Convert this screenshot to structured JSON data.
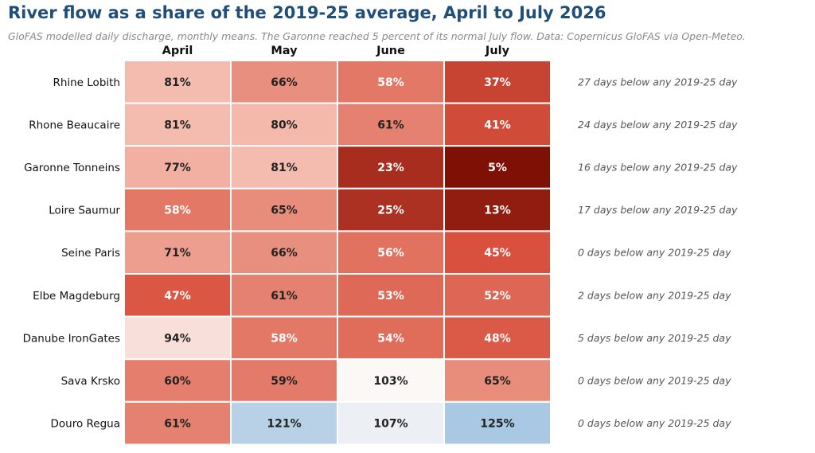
{
  "chart_data": {
    "type": "heatmap",
    "title": "River flow as a share of the 2019-25 average, April to July 2026",
    "subtitle": "GloFAS modelled daily discharge, monthly means. The Garonne reached 5 percent of its normal July flow. Data: Copernicus GloFAS via Open-Meteo.",
    "columns": [
      "April",
      "May",
      "June",
      "July"
    ],
    "rows": [
      {
        "name": "Rhine Lobith",
        "values": [
          81,
          66,
          58,
          37
        ],
        "note": "27 days below any 2019-25 day"
      },
      {
        "name": "Rhone Beaucaire",
        "values": [
          81,
          80,
          61,
          41
        ],
        "note": "24 days below any 2019-25 day"
      },
      {
        "name": "Garonne Tonneins",
        "values": [
          77,
          81,
          23,
          5
        ],
        "note": "16 days below any 2019-25 day"
      },
      {
        "name": "Loire Saumur",
        "values": [
          58,
          65,
          25,
          13
        ],
        "note": "17 days below any 2019-25 day"
      },
      {
        "name": "Seine Paris",
        "values": [
          71,
          66,
          56,
          45
        ],
        "note": "0 days below any 2019-25 day"
      },
      {
        "name": "Elbe Magdeburg",
        "values": [
          47,
          61,
          53,
          52
        ],
        "note": "2 days below any 2019-25 day"
      },
      {
        "name": "Danube IronGates",
        "values": [
          94,
          58,
          54,
          48
        ],
        "note": "5 days below any 2019-25 day"
      },
      {
        "name": "Sava Krsko",
        "values": [
          60,
          59,
          103,
          65
        ],
        "note": "0 days below any 2019-25 day"
      },
      {
        "name": "Douro Regua",
        "values": [
          61,
          121,
          107,
          125
        ],
        "note": "0 days below any 2019-25 day"
      }
    ],
    "value_suffix": "%",
    "colors": {
      "deep_red": "#7f1006",
      "red": "#d9513e",
      "light_red": "#f4b9ab",
      "neutral": "#fbf8f6",
      "blue": "#a9c8e3",
      "title": "#1f4e79",
      "subtitle": "#8a8a8a",
      "note": "#555555"
    }
  }
}
